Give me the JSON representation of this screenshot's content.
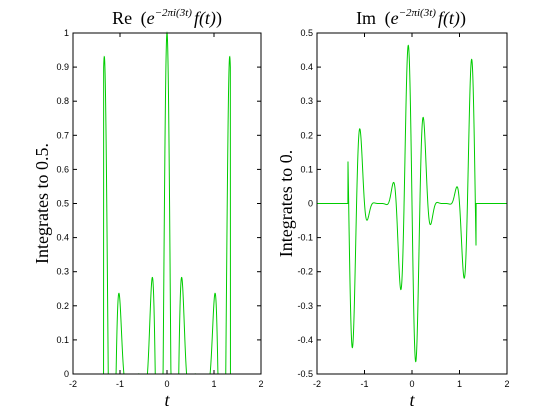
{
  "chart_data": [
    {
      "type": "line",
      "title": {
        "prefix": "Re",
        "base": "e",
        "exponent": "−2πi(3t)",
        "suffix": "f(t)"
      },
      "xlabel": "t",
      "ylabel": "Integrates to 0.5.",
      "xlim": [
        -2,
        2
      ],
      "ylim": [
        0,
        1
      ],
      "xticks": [
        -2,
        -1,
        0,
        1,
        2
      ],
      "yticks": [
        0,
        0.1,
        0.2,
        0.3,
        0.4,
        0.5,
        0.6,
        0.7,
        0.8,
        0.9,
        1
      ],
      "xtick_labels": [
        "-2",
        "-1",
        "0",
        "1",
        "2"
      ],
      "ytick_labels": [
        "0",
        "0.1",
        "0.2",
        "0.3",
        "0.4",
        "0.5",
        "0.6",
        "0.7",
        "0.8",
        "0.9",
        "1"
      ],
      "series": [
        {
          "function": "cos(2*pi*3*t) * f(t)",
          "envelope": "f(t) = sinc^2-shaped pulse, peak 1 at t=0, vanishing near |t|=1.3",
          "color": "#00cc00"
        }
      ],
      "grid": false
    },
    {
      "type": "line",
      "title": {
        "prefix": "Im",
        "base": "e",
        "exponent": "−2πi(3t)",
        "suffix": "f(t)"
      },
      "xlabel": "t",
      "ylabel": "Integrates to 0.",
      "xlim": [
        -2,
        2
      ],
      "ylim": [
        -0.5,
        0.5
      ],
      "xticks": [
        -2,
        -1,
        0,
        1,
        2
      ],
      "yticks": [
        -0.5,
        -0.4,
        -0.3,
        -0.2,
        -0.1,
        0,
        0.1,
        0.2,
        0.3,
        0.4,
        0.5
      ],
      "xtick_labels": [
        "-2",
        "-1",
        "0",
        "1",
        "2"
      ],
      "ytick_labels": [
        "-0.5",
        "-0.4",
        "-0.3",
        "-0.2",
        "-0.1",
        "0",
        "0.1",
        "0.2",
        "0.3",
        "0.4",
        "0.5"
      ],
      "series": [
        {
          "function": "-sin(2*pi*3*t) * f(t)",
          "color": "#00cc00"
        }
      ],
      "grid": false
    }
  ]
}
